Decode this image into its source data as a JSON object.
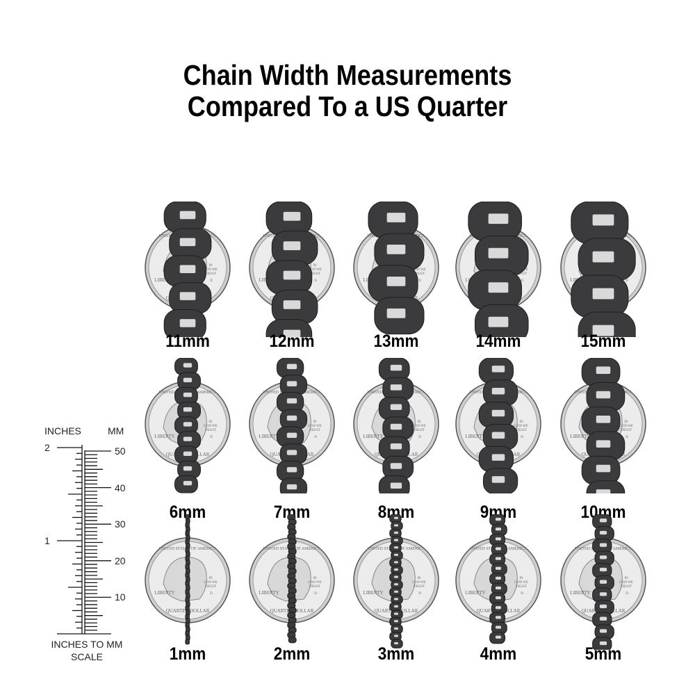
{
  "title": {
    "line1": "Chain Width Measurements",
    "line2": "Compared To a US Quarter"
  },
  "coin_lettering": {
    "top": "UNITED STATES OF AMERICA",
    "left": "LIBERTY",
    "motto": "IN GOD WE TRUST",
    "bottom": "QUARTER DOLLAR",
    "mint": "D"
  },
  "rows": [
    [
      {
        "mm": 11,
        "label": "11mm"
      },
      {
        "mm": 12,
        "label": "12mm"
      },
      {
        "mm": 13,
        "label": "13mm"
      },
      {
        "mm": 14,
        "label": "14mm"
      },
      {
        "mm": 15,
        "label": "15mm"
      }
    ],
    [
      {
        "mm": 6,
        "label": "6mm"
      },
      {
        "mm": 7,
        "label": "7mm"
      },
      {
        "mm": 8,
        "label": "8mm"
      },
      {
        "mm": 9,
        "label": "9mm"
      },
      {
        "mm": 10,
        "label": "10mm"
      }
    ],
    [
      {
        "mm": 1,
        "label": "1mm"
      },
      {
        "mm": 2,
        "label": "2mm"
      },
      {
        "mm": 3,
        "label": "3mm"
      },
      {
        "mm": 4,
        "label": "4mm"
      },
      {
        "mm": 5,
        "label": "5mm"
      }
    ]
  ],
  "ruler": {
    "inches_label": "INCHES",
    "mm_label": "MM",
    "inch_ticks": [
      "2",
      "1"
    ],
    "mm_ticks": [
      "50",
      "40",
      "30",
      "20",
      "10"
    ],
    "caption_line1": "INCHES TO MM",
    "caption_line2": "SCALE"
  },
  "colors": {
    "chain": "#3b3b3d",
    "coin": "#e6e6e6",
    "text": "#000000"
  }
}
